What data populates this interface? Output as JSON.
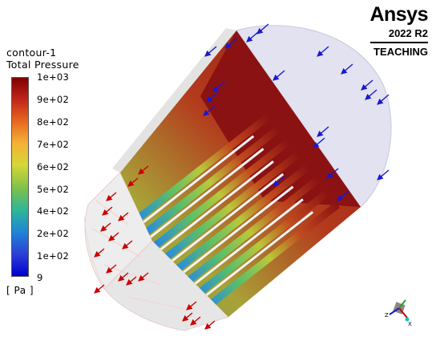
{
  "legend": {
    "title_line1": "contour-1",
    "title_line2": "Total Pressure",
    "ticks": [
      "1e+03",
      "9e+02",
      "8e+02",
      "7e+02",
      "6e+02",
      "5e+02",
      "4e+02",
      "2e+02",
      "1e+02",
      "9"
    ],
    "unit": "[ Pa ]",
    "colormap": [
      "#800000",
      "#c0261a",
      "#e8681e",
      "#f3b236",
      "#d6d736",
      "#7cc04c",
      "#2eb59a",
      "#1f84d6",
      "#2b3fd6",
      "#0000d0"
    ]
  },
  "brand": {
    "name": "Ansys",
    "version": "2022 R2",
    "edition": "TEACHING"
  },
  "colors": {
    "inlet_arrow": "#1a1acc",
    "outlet_arrow": "#cc0000",
    "inlet_face": "#e2e2f0",
    "high_pressure": "#8b1212"
  },
  "axes_triad": {
    "labels": [
      "Z",
      "X"
    ]
  }
}
